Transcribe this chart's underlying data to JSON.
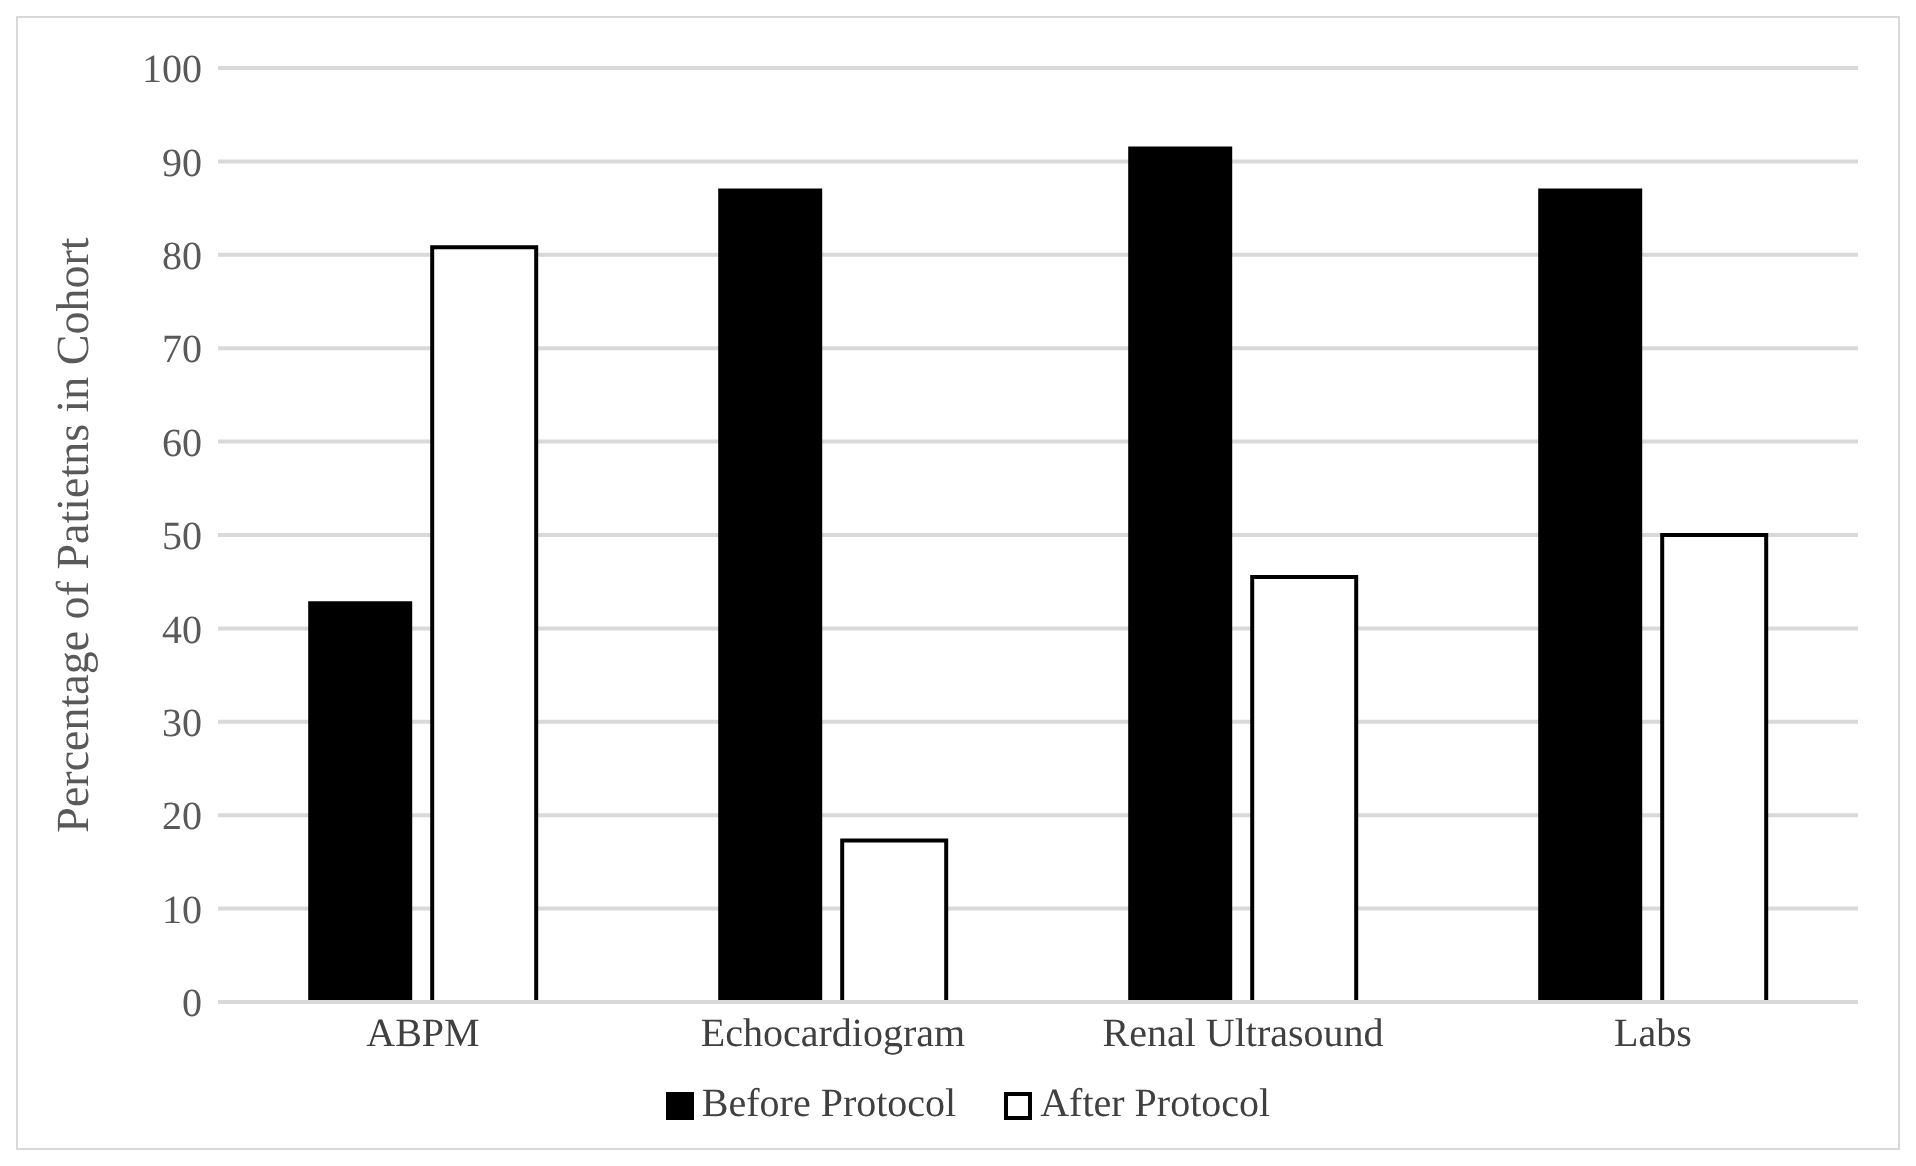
{
  "chart_data": {
    "type": "bar",
    "ylabel": "Percentage of Patietns in Cohort",
    "categories": [
      "ABPM",
      "Echocardiogram",
      "Renal Ultrasound",
      "Labs"
    ],
    "series": [
      {
        "name": "Before Protocol",
        "color": "#000000",
        "values": [
          42.9,
          87.1,
          91.6,
          87.1
        ]
      },
      {
        "name": "After Protocol",
        "color": "#ffffff",
        "values": [
          80.8,
          17.3,
          45.5,
          50
        ]
      }
    ],
    "ylim": [
      0,
      100
    ],
    "yticks": [
      0,
      10,
      20,
      30,
      40,
      50,
      60,
      70,
      80,
      90,
      100
    ],
    "grid": "y",
    "legend": "bottom"
  }
}
